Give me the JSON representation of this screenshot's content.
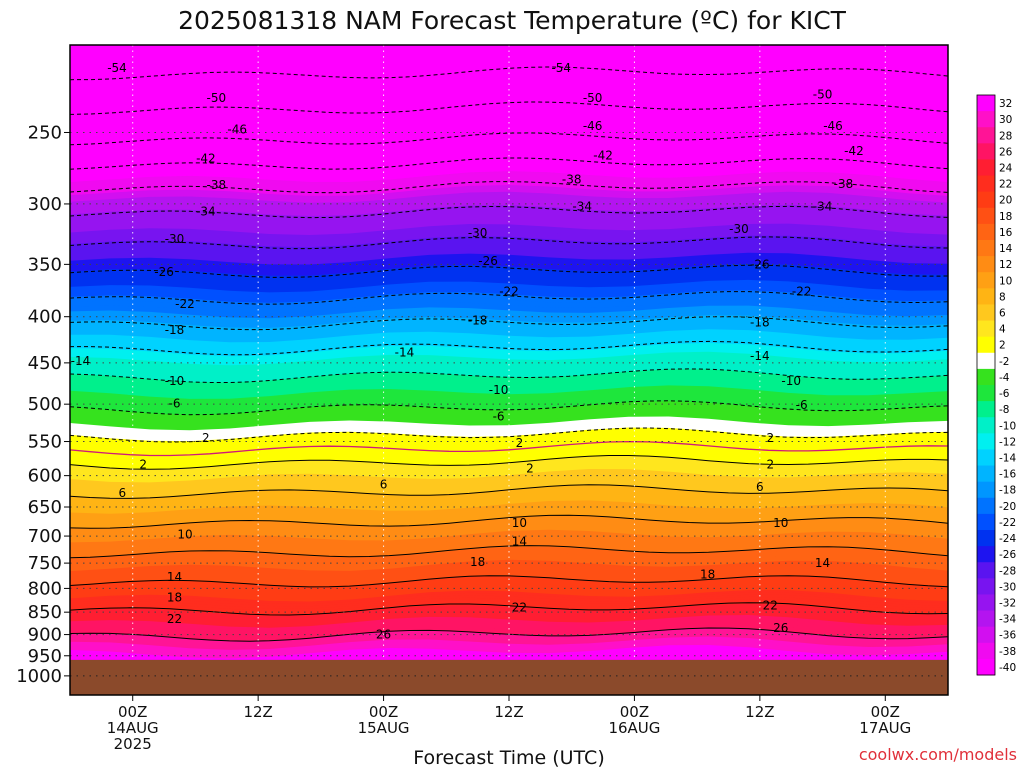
{
  "title": "2025081318 NAM Forecast Temperature (ºC) for KICT",
  "credit": "coolwx.com/models",
  "chart_data": {
    "type": "heatmap",
    "title": "2025081318 NAM Forecast Temperature (ºC) for KICT",
    "xlabel": "Forecast Time (UTC)",
    "ylabel": "",
    "y_scale": "log-pressure",
    "ylim": [
      1050,
      200
    ],
    "y_ticks": [
      250,
      300,
      350,
      400,
      450,
      500,
      550,
      600,
      650,
      700,
      750,
      800,
      850,
      900,
      950,
      1000
    ],
    "x_ticks": [
      {
        "hour": 0,
        "label": "00Z",
        "sub": "14AUG",
        "sub2": "2025"
      },
      {
        "hour": 12,
        "label": "12Z",
        "sub": "",
        "sub2": ""
      },
      {
        "hour": 24,
        "label": "00Z",
        "sub": "15AUG",
        "sub2": ""
      },
      {
        "hour": 36,
        "label": "12Z",
        "sub": "",
        "sub2": ""
      },
      {
        "hour": 48,
        "label": "00Z",
        "sub": "16AUG",
        "sub2": ""
      },
      {
        "hour": 60,
        "label": "12Z",
        "sub": "",
        "sub2": ""
      },
      {
        "hour": 72,
        "label": "00Z",
        "sub": "17AUG",
        "sub2": ""
      }
    ],
    "xlim_hours": [
      -6,
      78
    ],
    "ground_pressure": 960,
    "ground_color": "#8b4a2b",
    "freezing_line_color": "#d0197a",
    "colorbar_ticks": [
      32,
      30,
      28,
      26,
      24,
      22,
      20,
      18,
      16,
      14,
      12,
      10,
      8,
      6,
      4,
      2,
      -2,
      -4,
      -6,
      -8,
      -10,
      -12,
      -14,
      -16,
      -18,
      -20,
      -22,
      -24,
      -26,
      -28,
      -30,
      -32,
      -34,
      -36,
      -38,
      -40
    ],
    "colorbar_colors": [
      "#ff00ff",
      "#ff10c8",
      "#ff1496",
      "#ff1464",
      "#ff1e32",
      "#ff2d1e",
      "#ff3c14",
      "#ff5014",
      "#ff6414",
      "#ff7814",
      "#ff8c14",
      "#ffa014",
      "#ffb414",
      "#ffc81e",
      "#ffe61e",
      "#ffff00",
      "#ffffff",
      "#36e21e",
      "#1ee63c",
      "#00f08c",
      "#00f0c8",
      "#00f0f0",
      "#00d2ff",
      "#00b4ff",
      "#0096ff",
      "#0073ff",
      "#0050ff",
      "#0032f0",
      "#1e14f0",
      "#5a14f0",
      "#7814f0",
      "#9614f0",
      "#b414f0",
      "#d20ff0",
      "#f00af0",
      "#ff00ff"
    ],
    "contour_profile": [
      {
        "p": 200,
        "t": -57
      },
      {
        "p": 250,
        "t": -47
      },
      {
        "p": 300,
        "t": -35
      },
      {
        "p": 350,
        "t": -27
      },
      {
        "p": 400,
        "t": -19
      },
      {
        "p": 450,
        "t": -11.5
      },
      {
        "p": 500,
        "t": -6.5
      },
      {
        "p": 550,
        "t": -1
      },
      {
        "p": 600,
        "t": 4
      },
      {
        "p": 650,
        "t": 8
      },
      {
        "p": 700,
        "t": 12
      },
      {
        "p": 750,
        "t": 15.5
      },
      {
        "p": 800,
        "t": 19
      },
      {
        "p": 850,
        "t": 22.5
      },
      {
        "p": 900,
        "t": 26
      },
      {
        "p": 950,
        "t": 31
      },
      {
        "p": 1000,
        "t": 34
      }
    ],
    "contour_levels": [
      -54,
      -50,
      -46,
      -42,
      -38,
      -34,
      -30,
      -26,
      -22,
      -18,
      -14,
      -10,
      -6,
      -2,
      2,
      6,
      10,
      14,
      18,
      22,
      26
    ],
    "contour_labels": [
      {
        "v": "-54",
        "hour": -1.5,
        "p": 212
      },
      {
        "v": "-54",
        "hour": 41,
        "p": 212
      },
      {
        "v": "-50",
        "hour": 8,
        "p": 229
      },
      {
        "v": "-50",
        "hour": 44,
        "p": 229
      },
      {
        "v": "-50",
        "hour": 66,
        "p": 227
      },
      {
        "v": "-46",
        "hour": 10,
        "p": 248
      },
      {
        "v": "-46",
        "hour": 44,
        "p": 246
      },
      {
        "v": "-46",
        "hour": 67,
        "p": 246
      },
      {
        "v": "-42",
        "hour": 7,
        "p": 267
      },
      {
        "v": "-42",
        "hour": 45,
        "p": 265
      },
      {
        "v": "-42",
        "hour": 69,
        "p": 262
      },
      {
        "v": "-38",
        "hour": 8,
        "p": 286
      },
      {
        "v": "-38",
        "hour": 42,
        "p": 282
      },
      {
        "v": "-38",
        "hour": 68,
        "p": 285
      },
      {
        "v": "-34",
        "hour": 7,
        "p": 306
      },
      {
        "v": "-34",
        "hour": 43,
        "p": 302
      },
      {
        "v": "-34",
        "hour": 66,
        "p": 302
      },
      {
        "v": "-30",
        "hour": 4,
        "p": 328
      },
      {
        "v": "-30",
        "hour": 33,
        "p": 323
      },
      {
        "v": "-30",
        "hour": 58,
        "p": 320
      },
      {
        "v": "-26",
        "hour": 3,
        "p": 357
      },
      {
        "v": "-26",
        "hour": 34,
        "p": 347
      },
      {
        "v": "-26",
        "hour": 60,
        "p": 350
      },
      {
        "v": "-22",
        "hour": 5,
        "p": 387
      },
      {
        "v": "-22",
        "hour": 36,
        "p": 375
      },
      {
        "v": "-22",
        "hour": 64,
        "p": 375
      },
      {
        "v": "-18",
        "hour": 4,
        "p": 414
      },
      {
        "v": "-18",
        "hour": 33,
        "p": 404
      },
      {
        "v": "-18",
        "hour": 60,
        "p": 406
      },
      {
        "v": "-14",
        "hour": -5,
        "p": 448
      },
      {
        "v": "-14",
        "hour": 26,
        "p": 438
      },
      {
        "v": "-14",
        "hour": 60,
        "p": 442
      },
      {
        "v": "-10",
        "hour": 4,
        "p": 471
      },
      {
        "v": "-10",
        "hour": 35,
        "p": 482
      },
      {
        "v": "-10",
        "hour": 63,
        "p": 471
      },
      {
        "v": "-6",
        "hour": 4,
        "p": 499
      },
      {
        "v": "-6",
        "hour": 35,
        "p": 516
      },
      {
        "v": "-6",
        "hour": 64,
        "p": 501
      },
      {
        "v": "2",
        "hour": 7,
        "p": 545
      },
      {
        "v": "2",
        "hour": 37,
        "p": 552
      },
      {
        "v": "2",
        "hour": 61,
        "p": 545
      },
      {
        "v": "2",
        "hour": 1,
        "p": 583
      },
      {
        "v": "2",
        "hour": 38,
        "p": 589
      },
      {
        "v": "2",
        "hour": 61,
        "p": 583
      },
      {
        "v": "6",
        "hour": -1,
        "p": 627
      },
      {
        "v": "6",
        "hour": 24,
        "p": 614
      },
      {
        "v": "6",
        "hour": 60,
        "p": 618
      },
      {
        "v": "10",
        "hour": 5,
        "p": 697
      },
      {
        "v": "10",
        "hour": 37,
        "p": 677
      },
      {
        "v": "10",
        "hour": 62,
        "p": 677
      },
      {
        "v": "14",
        "hour": 37,
        "p": 710
      },
      {
        "v": "14",
        "hour": 66,
        "p": 750
      },
      {
        "v": "14",
        "hour": 4,
        "p": 777
      },
      {
        "v": "18",
        "hour": 33,
        "p": 748
      },
      {
        "v": "18",
        "hour": 55,
        "p": 772
      },
      {
        "v": "18",
        "hour": 4,
        "p": 819
      },
      {
        "v": "22",
        "hour": 4,
        "p": 865
      },
      {
        "v": "22",
        "hour": 37,
        "p": 840
      },
      {
        "v": "22",
        "hour": 61,
        "p": 836
      },
      {
        "v": "26",
        "hour": 24,
        "p": 900
      },
      {
        "v": "26",
        "hour": 62,
        "p": 885
      }
    ]
  }
}
